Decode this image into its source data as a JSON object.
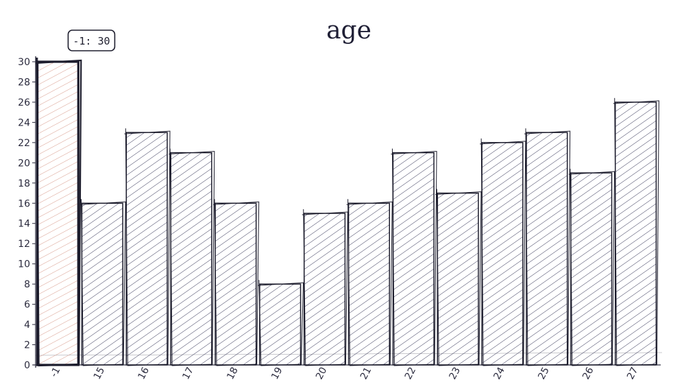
{
  "chart_data": {
    "type": "bar",
    "title": "age",
    "xlabel": "",
    "ylabel": "",
    "categories": [
      "-1",
      "15",
      "16",
      "17",
      "18",
      "19",
      "20",
      "21",
      "22",
      "23",
      "24",
      "25",
      "26",
      "27"
    ],
    "values": [
      30,
      16,
      23,
      21,
      16,
      8,
      15,
      16,
      21,
      17,
      22,
      23,
      19,
      26
    ],
    "ylim": [
      0,
      30
    ],
    "yticks": [
      0,
      2,
      4,
      6,
      8,
      10,
      12,
      14,
      16,
      18,
      20,
      22,
      24,
      26,
      28,
      30
    ],
    "grid": false,
    "style": "hand-drawn hatched",
    "colors": {
      "bar": "#3b3b5c",
      "highlight": "#d89a8a",
      "axis": "#2a2a3d"
    },
    "highlight": {
      "category": "-1",
      "value": 30,
      "tooltip": "-1: 30"
    }
  }
}
